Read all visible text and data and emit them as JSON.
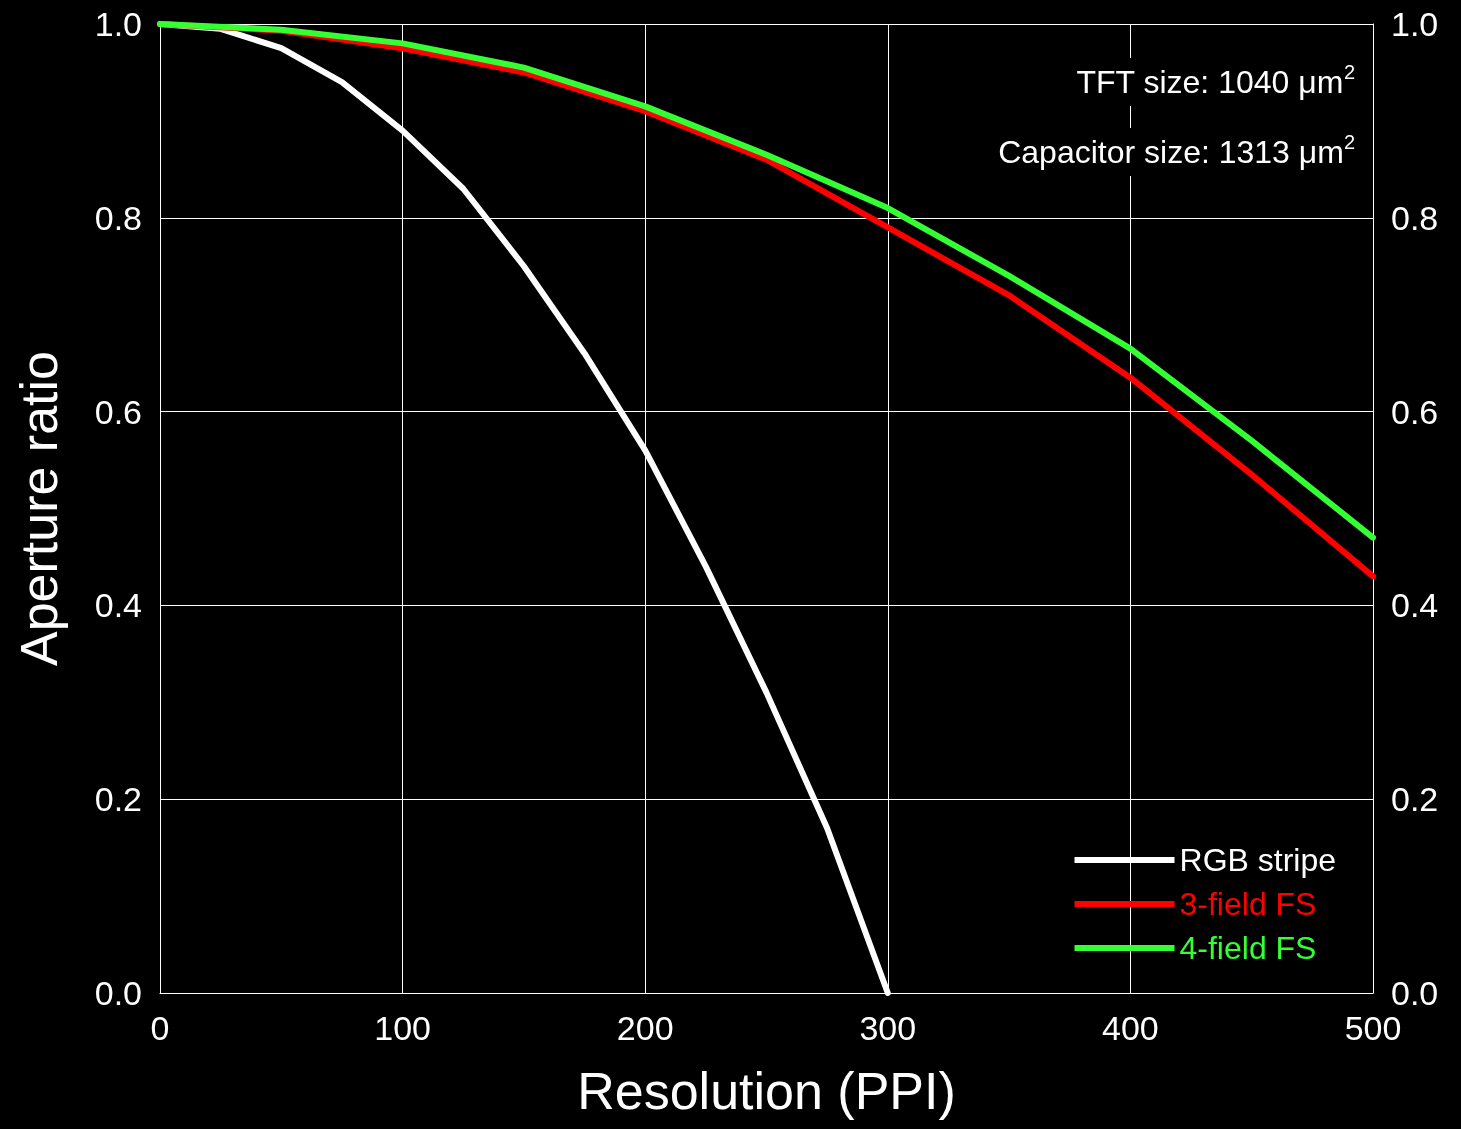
{
  "chart_data": {
    "type": "line",
    "xlabel": "Resolution (PPI)",
    "ylabel": "Aperture ratio",
    "annotations": [
      "TFT size: 1040 μm$^{2}$",
      "Capacitor size: 1313 μm$^{2}$"
    ],
    "series": [
      {
        "name": "RGB stripe",
        "color": "#ffffff",
        "x": [
          0,
          25,
          50,
          75,
          100,
          125,
          150,
          175,
          200,
          225,
          250,
          275,
          300
        ],
        "values": [
          1.0,
          0.995,
          0.975,
          0.94,
          0.89,
          0.83,
          0.75,
          0.66,
          0.56,
          0.44,
          0.31,
          0.17,
          0.0
        ]
      },
      {
        "name": "3-field FS",
        "color": "#ff0000",
        "x": [
          0,
          50,
          100,
          150,
          200,
          250,
          300,
          350,
          400,
          450,
          500
        ],
        "values": [
          1.0,
          0.993,
          0.975,
          0.95,
          0.91,
          0.86,
          0.79,
          0.72,
          0.635,
          0.535,
          0.43
        ]
      },
      {
        "name": "4-field FS",
        "color": "#33ff33",
        "x": [
          0,
          50,
          100,
          150,
          200,
          250,
          300,
          350,
          400,
          450,
          500
        ],
        "values": [
          1.0,
          0.994,
          0.98,
          0.955,
          0.915,
          0.865,
          0.81,
          0.74,
          0.665,
          0.57,
          0.47
        ]
      }
    ],
    "xlim": [
      0,
      500
    ],
    "xticks": [
      0,
      100,
      200,
      300,
      400,
      500
    ],
    "ylim": [
      0,
      1
    ],
    "yticks": [
      {
        "value": 0,
        "label": "0.0"
      },
      {
        "value": 0.2,
        "label": "0.2"
      },
      {
        "value": 0.4,
        "label": "0.4"
      },
      {
        "value": 0.6,
        "label": "0.6"
      },
      {
        "value": 0.8,
        "label": "0.8"
      },
      {
        "value": 1,
        "label": "1.0"
      }
    ],
    "y2lim": [
      0,
      1
    ],
    "y2ticks": [
      {
        "value": 0,
        "label": "0.0"
      },
      {
        "value": 0.2,
        "label": "0.2"
      },
      {
        "value": 0.4,
        "label": "0.4"
      },
      {
        "value": 0.6,
        "label": "0.6"
      },
      {
        "value": 0.8,
        "label": "0.8"
      },
      {
        "value": 1,
        "label": "1.0"
      }
    ],
    "grid": true,
    "legend": "bottom right",
    "marker": "none",
    "line_style": "solid"
  }
}
